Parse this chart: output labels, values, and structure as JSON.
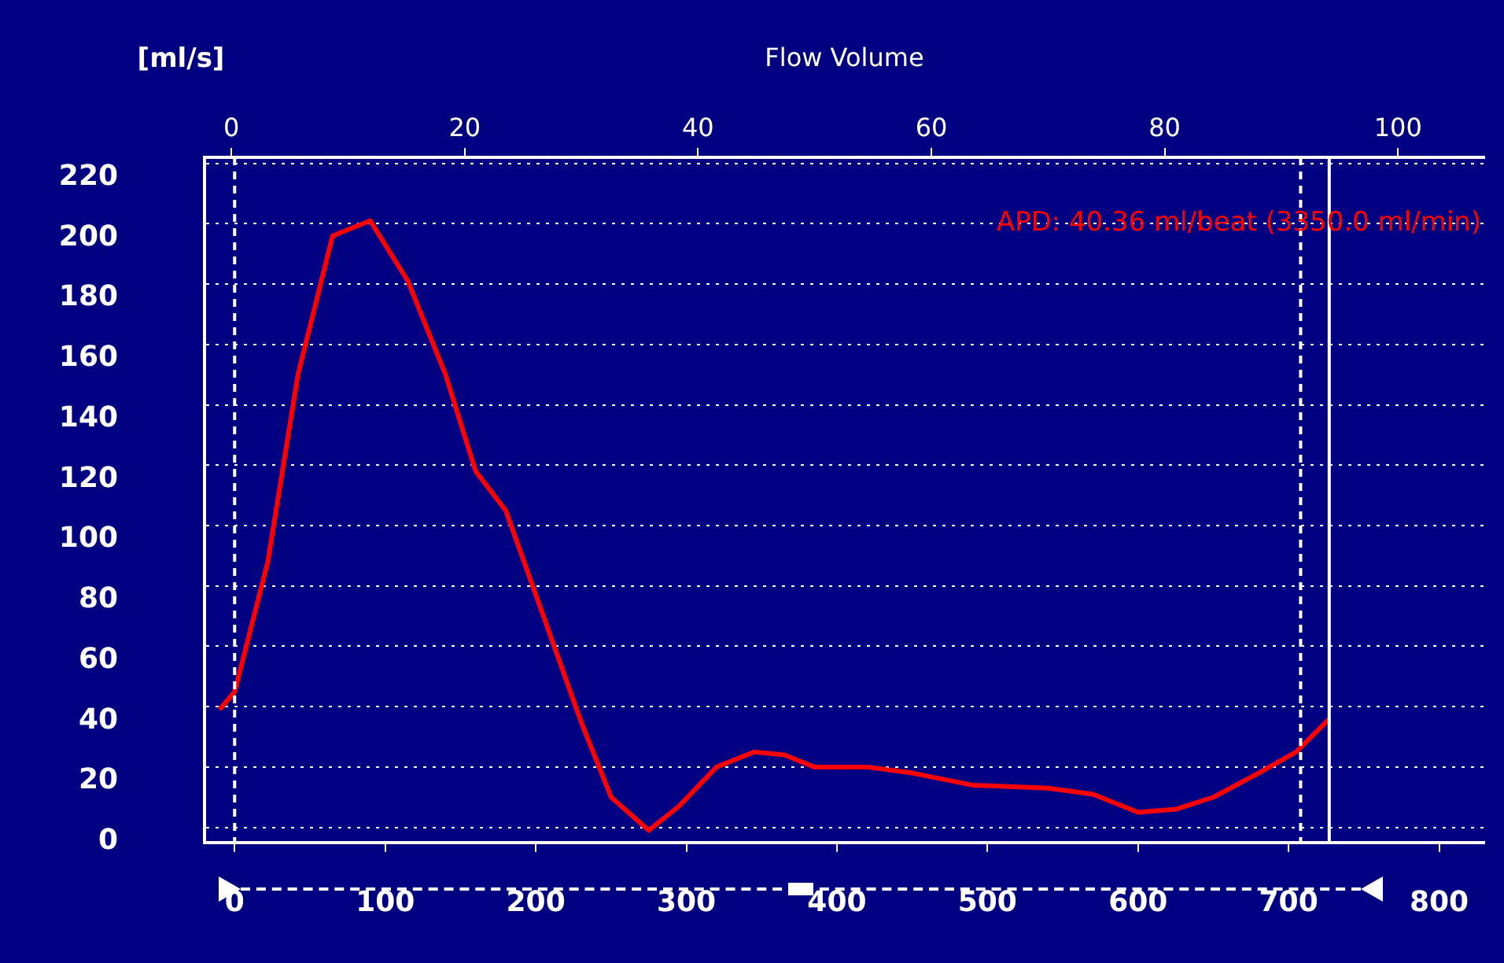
{
  "chart_data": {
    "type": "line",
    "title": "Flow Volume",
    "ylabel": "[ml/s]",
    "annotations": [
      "APD: 40.36 ml/beat (3350.0 ml/min)"
    ],
    "x": [
      -10,
      0,
      22,
      42,
      65,
      90,
      115,
      140,
      160,
      180,
      205,
      230,
      250,
      275,
      295,
      320,
      345,
      365,
      385,
      420,
      450,
      490,
      540,
      570,
      600,
      625,
      650,
      680,
      705,
      727
    ],
    "series": [
      {
        "color": "#ff0000",
        "values": [
          39,
          45,
          88,
          150,
          196,
          201,
          181,
          150,
          118,
          105,
          70,
          35,
          10,
          -1,
          7,
          20,
          25,
          24,
          20,
          20,
          18,
          14,
          13,
          11,
          5,
          6,
          10,
          18,
          25,
          36
        ]
      }
    ],
    "xlim": [
      -20,
      830
    ],
    "xticks": [
      0,
      100,
      200,
      300,
      400,
      500,
      600,
      700,
      800
    ],
    "x2lim": [
      -2.3,
      107.4
    ],
    "x2ticks": [
      0,
      20,
      40,
      60,
      80,
      100
    ],
    "ylim": [
      -5,
      222
    ],
    "yticks": [
      0,
      20,
      40,
      60,
      80,
      100,
      120,
      140,
      160,
      180,
      200,
      220
    ],
    "grid": "y",
    "legend": false,
    "marker": "none",
    "line_style": "solid",
    "ref_lines": [
      {
        "axis": "x",
        "value": 0,
        "color": "#ffffff",
        "line_style": "dashed"
      },
      {
        "axis": "x",
        "value": 708,
        "color": "#ffffff",
        "line_style": "dashed"
      },
      {
        "axis": "x",
        "value": 727,
        "color": "#ffffff",
        "line_style": "solid"
      }
    ]
  }
}
